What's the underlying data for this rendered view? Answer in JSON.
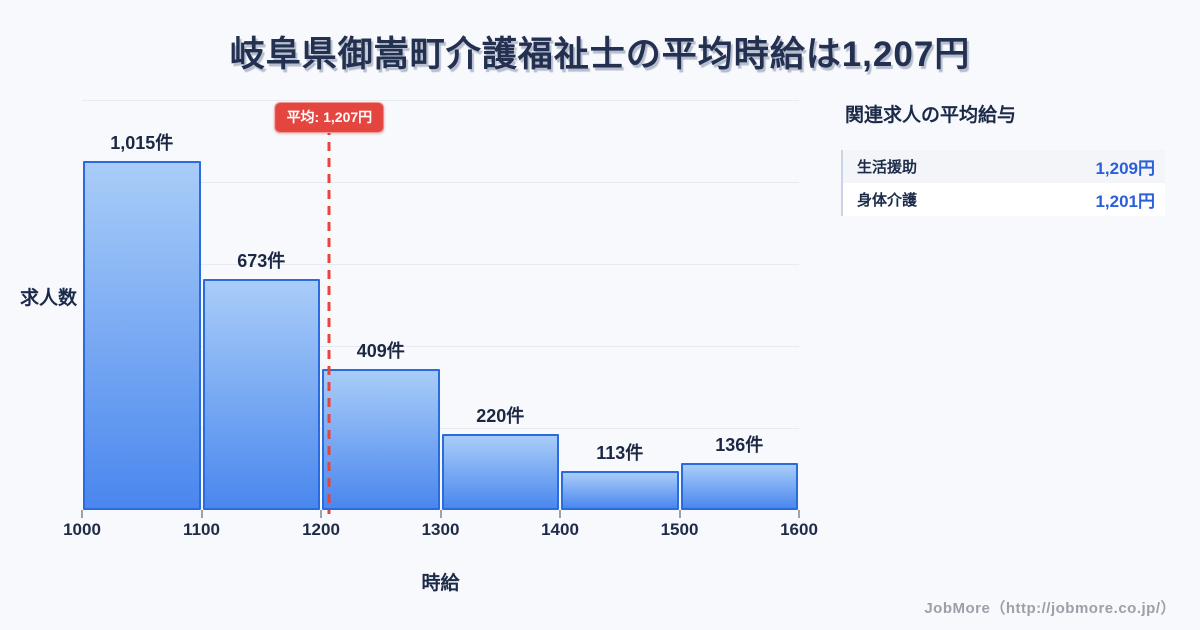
{
  "page": {
    "title": "岐阜県御嵩町介護福祉士の平均時給は1,207円",
    "footer": "JobMore（http://jobmore.co.jp/）"
  },
  "colors": {
    "background": "#f8f9fc",
    "title_navy": "#233050",
    "bar_fill_top": "#a9cdf8",
    "bar_fill_bottom": "#4a87ee",
    "bar_border": "#2a6ce0",
    "gridline": "#e8eaf1",
    "average_red": "#e5453f",
    "value_blue": "#2b5fd9",
    "footer_gray": "#9ba0a9"
  },
  "chart_data": {
    "type": "bar",
    "title": "岐阜県御嵩町介護福祉士の平均時給は1,207円",
    "xlabel": "時給",
    "ylabel": "求人数",
    "bin_edges": [
      1000,
      1100,
      1200,
      1300,
      1400,
      1500,
      1600
    ],
    "x_tick_labels": [
      "1000",
      "1100",
      "1200",
      "1300",
      "1400",
      "1500",
      "1600"
    ],
    "values": [
      1015,
      673,
      409,
      220,
      113,
      136
    ],
    "bar_labels": [
      "1,015件",
      "673件",
      "409件",
      "220件",
      "113件",
      "136件"
    ],
    "ylim": [
      0,
      1193
    ],
    "grid": "horizontal",
    "grid_divisions": 5,
    "legend": "none",
    "average_line": {
      "value": 1207,
      "label": "平均: 1,207円"
    }
  },
  "side_panel": {
    "heading": "関連求人の平均給与",
    "rows": [
      {
        "label": "生活援助",
        "value": "1,209円"
      },
      {
        "label": "身体介護",
        "value": "1,201円"
      }
    ]
  }
}
